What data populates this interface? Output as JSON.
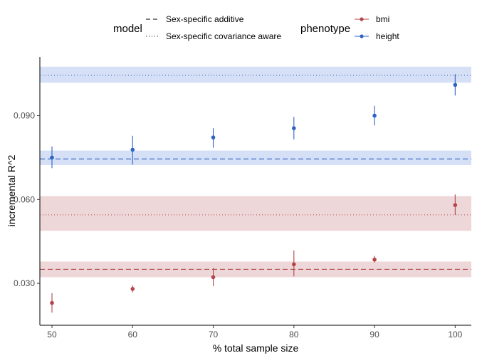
{
  "chart_data": {
    "type": "scatter",
    "xlabel": "% total sample size",
    "ylabel": "incremental R^2",
    "xlim": [
      48.5,
      102
    ],
    "ylim": [
      0.015,
      0.111
    ],
    "x_ticks": [
      50,
      60,
      70,
      80,
      90,
      100
    ],
    "y_ticks": [
      0.03,
      0.06,
      0.09
    ],
    "y_tick_labels": [
      "0.030",
      "0.060",
      "0.090"
    ],
    "legend": {
      "position": "top",
      "model_title": "model",
      "phenotype_title": "phenotype",
      "models": [
        {
          "label": "Sex-specific additive",
          "linetype": "dashed"
        },
        {
          "label": "Sex-specific covariance aware",
          "linetype": "dotted"
        }
      ]
    },
    "series": [
      {
        "name": "bmi",
        "color": "#B5454A",
        "band_color": "#EDD7D8",
        "x": [
          50,
          60,
          70,
          80,
          90,
          100
        ],
        "y": [
          0.023,
          0.028,
          0.0322,
          0.0368,
          0.0385,
          0.058
        ],
        "y_low": [
          0.0195,
          0.0268,
          0.029,
          0.0325,
          0.0375,
          0.0545
        ],
        "y_high": [
          0.0265,
          0.0292,
          0.0355,
          0.0418,
          0.0398,
          0.0618
        ],
        "hlines": [
          {
            "model": "Sex-specific additive",
            "y": 0.035,
            "low": 0.0322,
            "high": 0.0378
          },
          {
            "model": "Sex-specific covariance aware",
            "y": 0.0545,
            "low": 0.0488,
            "high": 0.0612
          }
        ]
      },
      {
        "name": "height",
        "color": "#2E63C4",
        "band_color": "#D5E0F6",
        "x": [
          50,
          60,
          70,
          80,
          90,
          100
        ],
        "y": [
          0.075,
          0.0778,
          0.0822,
          0.0855,
          0.09,
          0.101
        ],
        "y_low": [
          0.0712,
          0.0725,
          0.0785,
          0.0815,
          0.0865,
          0.0972
        ],
        "y_high": [
          0.079,
          0.0828,
          0.0855,
          0.0895,
          0.0935,
          0.1048
        ],
        "hlines": [
          {
            "model": "Sex-specific additive",
            "y": 0.0745,
            "low": 0.0723,
            "high": 0.0775
          },
          {
            "model": "Sex-specific covariance aware",
            "y": 0.1045,
            "low": 0.1018,
            "high": 0.1075
          }
        ]
      }
    ]
  }
}
